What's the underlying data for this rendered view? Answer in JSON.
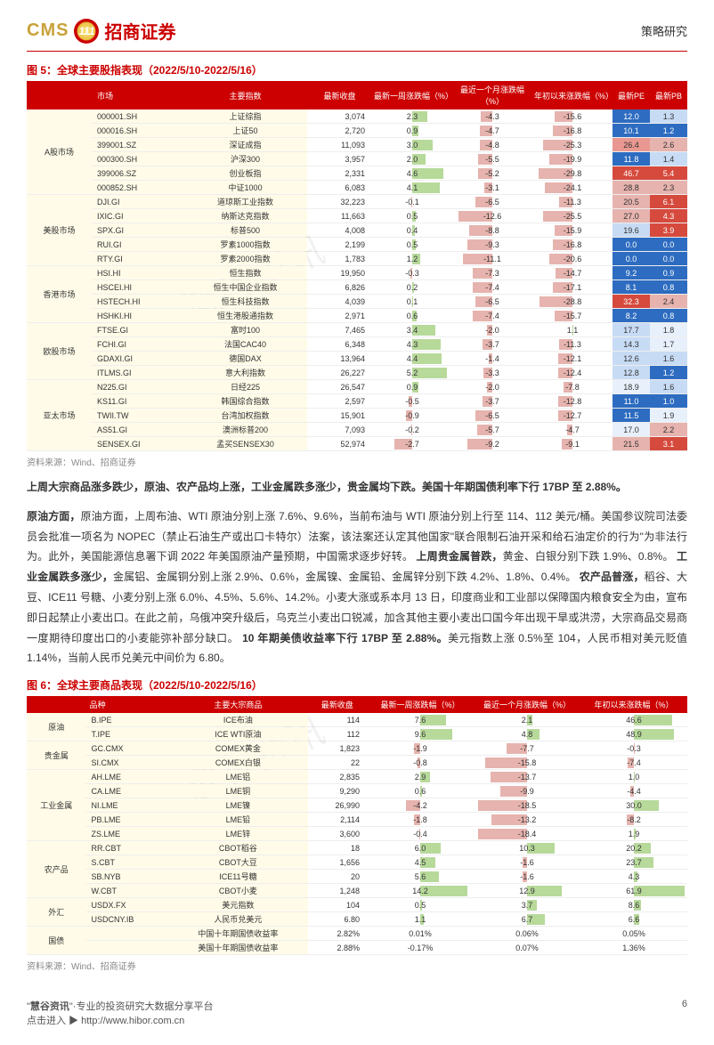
{
  "header": {
    "cms": "CMS",
    "cn": "招商证券",
    "right": "策略研究",
    "iconText": "111"
  },
  "fig5": {
    "title": "图 5：全球主要股指表现（2022/5/10-2022/5/16）",
    "cols": [
      "市场",
      "",
      "主要指数",
      "最新收盘",
      "最新一周涨跌幅（%）",
      "最近一个月涨跌幅（%）",
      "年初以来涨跌幅（%）",
      "最新PE",
      "最新PB"
    ],
    "weekScale": 6,
    "monScale": 15,
    "ytdScale": 35,
    "posColor": "#b7d99a",
    "negColor": "#e6b3ae",
    "peColors": {
      "low": "#2d6cc0",
      "mid": "#e8f0fb",
      "high": "#d54a3d"
    },
    "pbColors": {
      "low": "#2d6cc0",
      "mid": "#e8f0fb",
      "high": "#d54a3d"
    },
    "groups": [
      {
        "name": "A股市场",
        "rows": [
          {
            "code": "000001.SH",
            "name": "上证综指",
            "close": "3,074",
            "w": 2.3,
            "m": -4.3,
            "y": -15.6,
            "pe": 12.0,
            "pb": 1.3,
            "pec": "#2d6cc0",
            "pbc": "#c7dbf4"
          },
          {
            "code": "000016.SH",
            "name": "上证50",
            "close": "2,720",
            "w": 0.9,
            "m": -4.7,
            "y": -16.8,
            "pe": 10.1,
            "pb": 1.2,
            "pec": "#2d6cc0",
            "pbc": "#2d6cc0"
          },
          {
            "code": "399001.SZ",
            "name": "深证成指",
            "close": "11,093",
            "w": 3.0,
            "m": -4.8,
            "y": -25.3,
            "pe": 26.4,
            "pb": 2.6,
            "pec": "#e89890",
            "pbc": "#e6b3ae"
          },
          {
            "code": "000300.SH",
            "name": "沪深300",
            "close": "3,957",
            "w": 2.0,
            "m": -5.5,
            "y": -19.9,
            "pe": 11.8,
            "pb": 1.4,
            "pec": "#2d6cc0",
            "pbc": "#c7dbf4"
          },
          {
            "code": "399006.SZ",
            "name": "创业板指",
            "close": "2,331",
            "w": 4.6,
            "m": -5.2,
            "y": -29.8,
            "pe": 46.7,
            "pb": 5.4,
            "pec": "#d54a3d",
            "pbc": "#d54a3d"
          },
          {
            "code": "000852.SH",
            "name": "中证1000",
            "close": "6,083",
            "w": 4.1,
            "m": -3.1,
            "y": -24.1,
            "pe": 28.8,
            "pb": 2.3,
            "pec": "#e6b3ae",
            "pbc": "#e6b3ae"
          }
        ]
      },
      {
        "name": "美股市场",
        "rows": [
          {
            "code": "DJI.GI",
            "name": "道琼斯工业指数",
            "close": "32,223",
            "w": -0.1,
            "m": -6.5,
            "y": -11.3,
            "pe": 20.5,
            "pb": 6.1,
            "pec": "#e6b3ae",
            "pbc": "#d54a3d"
          },
          {
            "code": "IXIC.GI",
            "name": "纳斯达克指数",
            "close": "11,663",
            "w": 0.5,
            "m": -12.6,
            "y": -25.5,
            "pe": 27.0,
            "pb": 4.3,
            "pec": "#e6b3ae",
            "pbc": "#d54a3d"
          },
          {
            "code": "SPX.GI",
            "name": "标普500",
            "close": "4,008",
            "w": 0.4,
            "m": -8.8,
            "y": -15.9,
            "pe": 19.6,
            "pb": 3.9,
            "pec": "#c7dbf4",
            "pbc": "#d54a3d"
          },
          {
            "code": "RUI.GI",
            "name": "罗素1000指数",
            "close": "2,199",
            "w": 0.5,
            "m": -9.3,
            "y": -16.8,
            "pe": 0.0,
            "pb": 0.0,
            "pec": "#2d6cc0",
            "pbc": "#2d6cc0"
          },
          {
            "code": "RTY.GI",
            "name": "罗素2000指数",
            "close": "1,783",
            "w": 1.2,
            "m": -11.1,
            "y": -20.6,
            "pe": 0.0,
            "pb": 0.0,
            "pec": "#2d6cc0",
            "pbc": "#2d6cc0"
          }
        ]
      },
      {
        "name": "香港市场",
        "rows": [
          {
            "code": "HSI.HI",
            "name": "恒生指数",
            "close": "19,950",
            "w": -0.3,
            "m": -7.3,
            "y": -14.7,
            "pe": 9.2,
            "pb": 0.9,
            "pec": "#2d6cc0",
            "pbc": "#2d6cc0"
          },
          {
            "code": "HSCEI.HI",
            "name": "恒生中国企业指数",
            "close": "6,826",
            "w": 0.2,
            "m": -7.4,
            "y": -17.1,
            "pe": 8.1,
            "pb": 0.8,
            "pec": "#2d6cc0",
            "pbc": "#2d6cc0"
          },
          {
            "code": "HSTECH.HI",
            "name": "恒生科技指数",
            "close": "4,039",
            "w": 0.1,
            "m": -6.5,
            "y": -28.8,
            "pe": 32.3,
            "pb": 2.4,
            "pec": "#d54a3d",
            "pbc": "#e6b3ae"
          },
          {
            "code": "HSHKI.HI",
            "name": "恒生港股通指数",
            "close": "2,971",
            "w": 0.6,
            "m": -7.4,
            "y": -15.7,
            "pe": 8.2,
            "pb": 0.8,
            "pec": "#2d6cc0",
            "pbc": "#2d6cc0"
          }
        ]
      },
      {
        "name": "欧股市场",
        "rows": [
          {
            "code": "FTSE.GI",
            "name": "富时100",
            "close": "7,465",
            "w": 3.4,
            "m": -2.0,
            "y": 1.1,
            "pe": 17.7,
            "pb": 1.8,
            "pec": "#c7dbf4",
            "pbc": "#e8f0fb"
          },
          {
            "code": "FCHI.GI",
            "name": "法国CAC40",
            "close": "6,348",
            "w": 4.3,
            "m": -3.7,
            "y": -11.3,
            "pe": 14.3,
            "pb": 1.7,
            "pec": "#c7dbf4",
            "pbc": "#e8f0fb"
          },
          {
            "code": "GDAXI.GI",
            "name": "德国DAX",
            "close": "13,964",
            "w": 4.4,
            "m": -1.4,
            "y": -12.1,
            "pe": 12.6,
            "pb": 1.6,
            "pec": "#c7dbf4",
            "pbc": "#c7dbf4"
          },
          {
            "code": "ITLMS.GI",
            "name": "意大利指数",
            "close": "26,227",
            "w": 5.2,
            "m": -3.3,
            "y": -12.4,
            "pe": 12.8,
            "pb": 1.2,
            "pec": "#c7dbf4",
            "pbc": "#2d6cc0"
          }
        ]
      },
      {
        "name": "亚太市场",
        "rows": [
          {
            "code": "N225.GI",
            "name": "日经225",
            "close": "26,547",
            "w": 0.9,
            "m": -2.0,
            "y": -7.8,
            "pe": 18.9,
            "pb": 1.6,
            "pec": "#e8f0fb",
            "pbc": "#c7dbf4"
          },
          {
            "code": "KS11.GI",
            "name": "韩国综合指数",
            "close": "2,597",
            "w": -0.5,
            "m": -3.7,
            "y": -12.8,
            "pe": 11.0,
            "pb": 1.0,
            "pec": "#2d6cc0",
            "pbc": "#2d6cc0"
          },
          {
            "code": "TWII.TW",
            "name": "台湾加权指数",
            "close": "15,901",
            "w": -0.9,
            "m": -6.5,
            "y": -12.7,
            "pe": 11.5,
            "pb": 1.9,
            "pec": "#2d6cc0",
            "pbc": "#e8f0fb"
          },
          {
            "code": "AS51.GI",
            "name": "澳洲标普200",
            "close": "7,093",
            "w": -0.2,
            "m": -5.7,
            "y": -4.7,
            "pe": 17.0,
            "pb": 2.2,
            "pec": "#e8f0fb",
            "pbc": "#e6b3ae"
          },
          {
            "code": "SENSEX.GI",
            "name": "孟买SENSEX30",
            "close": "52,974",
            "w": -2.7,
            "m": -9.2,
            "y": -9.1,
            "pe": 21.5,
            "pb": 3.1,
            "pec": "#e6b3ae",
            "pbc": "#d54a3d"
          }
        ]
      }
    ]
  },
  "source": "资料来源：Wind、招商证券",
  "para1_bold": "上周大宗商品涨多跌少，原油、农产品均上涨，工业金属跌多涨少，贵金属均下跌。美国十年期国债利率下行 17BP 至 2.88%。",
  "para2": "原油方面，上周布油、WTI 原油分别上涨 7.6%、9.6%，当前布油与 WTI 原油分别上行至 114、112 美元/桶。美国参议院司法委员会批准一项名为 NOPEC（禁止石油生产或出口卡特尔）法案，该法案还认定其他国家\"联合限制石油开采和给石油定价的行为\"为非法行为。此外，美国能源信息署下调 2022 年美国原油产量预期，中国需求逐步好转。",
  "para2b": "上周贵金属普跌，",
  "para2c": "黄金、白银分别下跌 1.9%、0.8%。",
  "para2d": "工业金属跌多涨少，",
  "para2e": "金属铝、金属铜分别上涨 2.9%、0.6%，金属镍、金属铅、金属锌分别下跌 4.2%、1.8%、0.4%。",
  "para2f": "农产品普涨，",
  "para2g": "稻谷、大豆、ICE11 号糖、小麦分别上涨 6.0%、4.5%、5.6%、14.2%。小麦大涨或系本月 13 日，印度商业和工业部以保障国内粮食安全为由，宣布即日起禁止小麦出口。在此之前，乌俄冲突升级后，乌克兰小麦出口锐减，加含其他主要小麦出口国今年出现干旱或洪涝，大宗商品交易商一度期待印度出口的小麦能弥补部分缺口。",
  "para2h": "10 年期美债收益率下行 17BP 至 2.88%。",
  "para2i": "美元指数上涨 0.5%至 104，人民币相对美元贬值 1.14%，当前人民币兑美元中间价为 6.80。",
  "fig6": {
    "title": "图 6：全球主要商品表现（2022/5/10-2022/5/16）",
    "cols": [
      "品种",
      "",
      "主要大宗商品",
      "最新收盘",
      "最新一周涨跌幅（%）",
      "最近一个月涨跌幅（%）",
      "年初以来涨跌幅（%）"
    ],
    "weekScale": 16,
    "monScale": 20,
    "ytdScale": 65,
    "posColor": "#b7d99a",
    "negColor": "#e6b3ae",
    "groups": [
      {
        "name": "原油",
        "rows": [
          {
            "code": "B.IPE",
            "name": "ICE布油",
            "close": "114",
            "w": 7.6,
            "m": 2.1,
            "y": 46.6
          },
          {
            "code": "T.IPE",
            "name": "ICE WTI原油",
            "close": "112",
            "w": 9.6,
            "m": 4.8,
            "y": 48.9
          }
        ]
      },
      {
        "name": "贵金属",
        "rows": [
          {
            "code": "GC.CMX",
            "name": "COMEX黄金",
            "close": "1,823",
            "w": -1.9,
            "m": -7.7,
            "y": -0.3
          },
          {
            "code": "SI.CMX",
            "name": "COMEX白银",
            "close": "22",
            "w": -0.8,
            "m": -15.8,
            "y": -7.4
          }
        ]
      },
      {
        "name": "工业金属",
        "rows": [
          {
            "code": "AH.LME",
            "name": "LME铝",
            "close": "2,835",
            "w": 2.9,
            "m": -13.7,
            "y": 1.0
          },
          {
            "code": "CA.LME",
            "name": "LME铜",
            "close": "9,290",
            "w": 0.6,
            "m": -9.9,
            "y": -4.4
          },
          {
            "code": "NI.LME",
            "name": "LME镍",
            "close": "26,990",
            "w": -4.2,
            "m": -18.5,
            "y": 30.0
          },
          {
            "code": "PB.LME",
            "name": "LME铅",
            "close": "2,114",
            "w": -1.8,
            "m": -13.2,
            "y": -8.2
          },
          {
            "code": "ZS.LME",
            "name": "LME锌",
            "close": "3,600",
            "w": -0.4,
            "m": -18.4,
            "y": 1.9
          }
        ]
      },
      {
        "name": "农产品",
        "rows": [
          {
            "code": "RR.CBT",
            "name": "CBOT稻谷",
            "close": "18",
            "w": 6.0,
            "m": 10.3,
            "y": 20.2
          },
          {
            "code": "S.CBT",
            "name": "CBOT大豆",
            "close": "1,656",
            "w": 4.5,
            "m": -1.6,
            "y": 23.7
          },
          {
            "code": "SB.NYB",
            "name": "ICE11号糖",
            "close": "20",
            "w": 5.6,
            "m": -1.6,
            "y": 4.3
          },
          {
            "code": "W.CBT",
            "name": "CBOT小麦",
            "close": "1,248",
            "w": 14.2,
            "m": 12.9,
            "y": 61.9
          }
        ]
      },
      {
        "name": "外汇",
        "rows": [
          {
            "code": "USDX.FX",
            "name": "美元指数",
            "close": "104",
            "w": 0.5,
            "m": 3.7,
            "y": 8.6
          },
          {
            "code": "USDCNY.IB",
            "name": "人民币兑美元",
            "close": "6.80",
            "w": 1.14,
            "m": 6.7,
            "y": 6.6
          }
        ]
      },
      {
        "name": "国债",
        "rows": [
          {
            "code": "",
            "name": "中国十年期国债收益率",
            "close": "2.82%",
            "w": "0.01%",
            "m": "0.06%",
            "y": "0.05%",
            "plain": true
          },
          {
            "code": "",
            "name": "美国十年期国债收益率",
            "close": "2.88%",
            "w": "-0.17%",
            "m": "0.07%",
            "y": "1.36%",
            "plain": true
          }
        ]
      }
    ]
  },
  "footer": {
    "left_pre": "\"",
    "left_b": "慧谷资讯",
    "left_post": "\"·专业的投资研究大数据分享平台",
    "click": "点击进入 ▶",
    "link": "http://www.hibor.com.cn",
    "page": "6"
  },
  "watermarks": [
    "慧谷资讯",
    "慧谷资讯"
  ]
}
